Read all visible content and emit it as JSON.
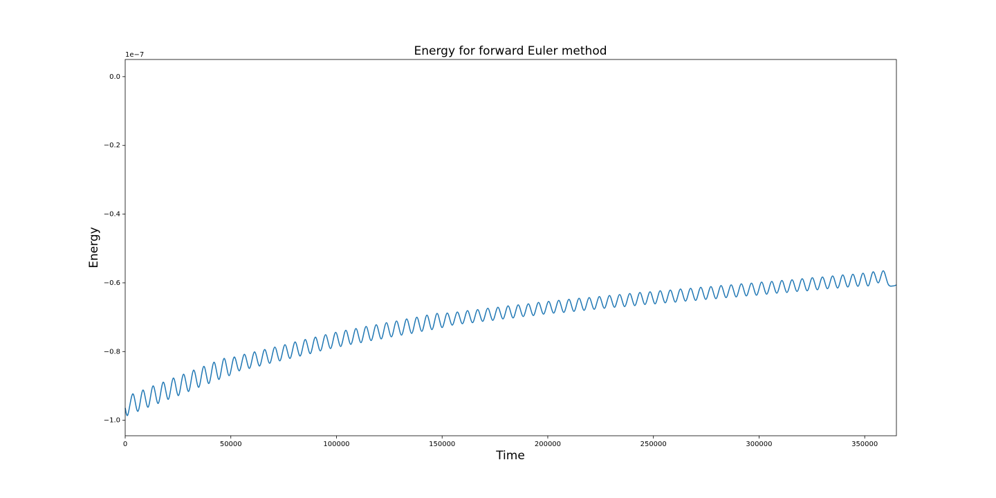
{
  "chart_data": {
    "type": "line",
    "title": "Energy for forward Euler method",
    "x_label": "Time",
    "y_label": "Energy",
    "y_offset_label": "1e−7",
    "xlim": [
      0,
      365000
    ],
    "ylim": [
      -1.045,
      0.05
    ],
    "xticks": [
      0,
      50000,
      100000,
      150000,
      200000,
      250000,
      300000,
      350000
    ],
    "yticks": [
      {
        "value": 0.0,
        "label": "0.0"
      },
      {
        "value": -0.2,
        "label": "−0.2"
      },
      {
        "value": -0.4,
        "label": "−0.4"
      },
      {
        "value": -0.6,
        "label": "−0.6"
      },
      {
        "value": -0.8,
        "label": "−0.8"
      },
      {
        "value": -1.0,
        "label": "−1.0"
      }
    ],
    "grid": false,
    "x": [
      0,
      1200,
      3600,
      6000,
      8400,
      10800,
      13200,
      15600,
      18000,
      20400,
      22800,
      25200,
      27600,
      30000,
      32400,
      34800,
      37200,
      39600,
      42000,
      44400,
      46800,
      49200,
      51600,
      54000,
      56400,
      58800,
      61200,
      63600,
      66000,
      68400,
      70800,
      73200,
      75600,
      78000,
      80400,
      82800,
      85200,
      87600,
      90000,
      92400,
      94800,
      97200,
      99600,
      102000,
      104400,
      106800,
      109200,
      111600,
      114000,
      116400,
      118800,
      121200,
      123600,
      126000,
      128400,
      130800,
      133200,
      135600,
      138000,
      140400,
      142800,
      145200,
      147600,
      150000,
      152400,
      154800,
      157200,
      159600,
      162000,
      164400,
      166800,
      169200,
      171600,
      174000,
      176400,
      178800,
      181200,
      183600,
      186000,
      188400,
      190800,
      193200,
      195600,
      198000,
      200400,
      202800,
      205200,
      207600,
      210000,
      212400,
      214800,
      217200,
      219600,
      222000,
      224400,
      226800,
      229200,
      231600,
      234000,
      236400,
      238800,
      241200,
      243600,
      246000,
      248400,
      250800,
      253200,
      255600,
      258000,
      260400,
      262800,
      265200,
      267600,
      270000,
      272400,
      274800,
      277200,
      279600,
      282000,
      284400,
      286800,
      289200,
      291600,
      294000,
      296400,
      298800,
      301200,
      303600,
      306000,
      308400,
      310800,
      313200,
      315600,
      318000,
      320400,
      322800,
      325200,
      327600,
      330000,
      332400,
      334800,
      337200,
      339600,
      342000,
      344400,
      346800,
      349200,
      351600,
      354000,
      356400,
      358800,
      361200,
      363600,
      365000
    ],
    "series": [
      {
        "color": "#1f77b4",
        "values": [
          -0.964,
          -0.985,
          -0.923,
          -0.974,
          -0.912,
          -0.962,
          -0.9,
          -0.951,
          -0.889,
          -0.939,
          -0.877,
          -0.928,
          -0.866,
          -0.916,
          -0.854,
          -0.904,
          -0.843,
          -0.893,
          -0.831,
          -0.881,
          -0.82,
          -0.87,
          -0.816,
          -0.856,
          -0.808,
          -0.849,
          -0.801,
          -0.842,
          -0.794,
          -0.834,
          -0.787,
          -0.827,
          -0.78,
          -0.82,
          -0.772,
          -0.813,
          -0.765,
          -0.806,
          -0.758,
          -0.798,
          -0.751,
          -0.791,
          -0.744,
          -0.785,
          -0.738,
          -0.779,
          -0.733,
          -0.774,
          -0.727,
          -0.768,
          -0.722,
          -0.763,
          -0.716,
          -0.757,
          -0.711,
          -0.752,
          -0.705,
          -0.747,
          -0.7,
          -0.741,
          -0.694,
          -0.736,
          -0.689,
          -0.73,
          -0.688,
          -0.723,
          -0.685,
          -0.719,
          -0.681,
          -0.716,
          -0.678,
          -0.712,
          -0.674,
          -0.709,
          -0.671,
          -0.705,
          -0.667,
          -0.702,
          -0.664,
          -0.698,
          -0.661,
          -0.695,
          -0.657,
          -0.691,
          -0.654,
          -0.688,
          -0.651,
          -0.686,
          -0.648,
          -0.683,
          -0.645,
          -0.68,
          -0.643,
          -0.677,
          -0.64,
          -0.674,
          -0.637,
          -0.671,
          -0.634,
          -0.669,
          -0.631,
          -0.666,
          -0.628,
          -0.663,
          -0.626,
          -0.661,
          -0.623,
          -0.658,
          -0.621,
          -0.656,
          -0.618,
          -0.653,
          -0.616,
          -0.651,
          -0.613,
          -0.648,
          -0.611,
          -0.646,
          -0.608,
          -0.643,
          -0.606,
          -0.641,
          -0.603,
          -0.638,
          -0.601,
          -0.636,
          -0.598,
          -0.633,
          -0.596,
          -0.63,
          -0.593,
          -0.628,
          -0.591,
          -0.625,
          -0.588,
          -0.623,
          -0.585,
          -0.62,
          -0.583,
          -0.617,
          -0.58,
          -0.615,
          -0.577,
          -0.612,
          -0.575,
          -0.61,
          -0.572,
          -0.609,
          -0.568,
          -0.6,
          -0.565,
          -0.605,
          -0.609,
          -0.606
        ]
      }
    ]
  }
}
